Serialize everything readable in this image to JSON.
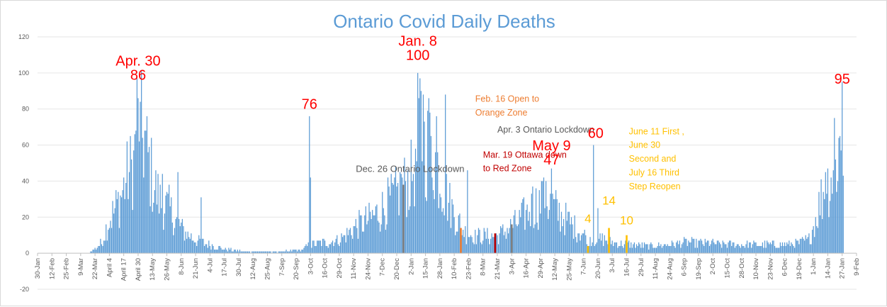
{
  "chart_data": {
    "type": "bar",
    "title": "Ontario Covid Daily Deaths",
    "ylim": [
      -20,
      120
    ],
    "yticks": [
      -20,
      0,
      20,
      40,
      60,
      80,
      100,
      120
    ],
    "x_start": "2020-01-30",
    "x_end": "2022-02-09",
    "xtick_labels": [
      "30-Jan",
      "12-Feb",
      "25-Feb",
      "9-Mar",
      "22-Mar",
      "April 4",
      "April 17",
      "April 30",
      "13-May",
      "26-May",
      "8-Jun",
      "21-Jun",
      "4-Jul",
      "17-Jul",
      "30-Jul",
      "12-Aug",
      "25-Aug",
      "7-Sep",
      "20-Sep",
      "3-Oct",
      "16-Oct",
      "29-Oct",
      "11-Nov",
      "24-Nov",
      "7-Dec",
      "20-Dec",
      "2-Jan",
      "15-Jan",
      "28-Jan",
      "10-Feb",
      "23-Feb",
      "8-Mar",
      "21-Mar",
      "3-Apr",
      "16-Apr",
      "29-Apr",
      "12-May",
      "25-May",
      "7-Jun",
      "20-Jun",
      "3-Jul",
      "16-Jul",
      "29-Jul",
      "11-Aug",
      "24-Aug",
      "6-Sep",
      "19-Sep",
      "2-Oct",
      "15-Oct",
      "28-Oct",
      "10-Nov",
      "23-Nov",
      "6-Dec",
      "19-Dec",
      "1-Jan",
      "14-Jan",
      "27-Jan",
      "9-Feb"
    ],
    "color": "#5b9bd5",
    "keypoints": [
      [
        "2020-03-15",
        0
      ],
      [
        "2020-03-20",
        2
      ],
      [
        "2020-03-28",
        6
      ],
      [
        "2020-04-03",
        18
      ],
      [
        "2020-04-08",
        24
      ],
      [
        "2020-04-14",
        32
      ],
      [
        "2020-04-20",
        44
      ],
      [
        "2020-04-26",
        52
      ],
      [
        "2020-04-30",
        86
      ],
      [
        "2020-05-03",
        70
      ],
      [
        "2020-05-08",
        58
      ],
      [
        "2020-05-14",
        40
      ],
      [
        "2020-05-20",
        30
      ],
      [
        "2020-05-28",
        26
      ],
      [
        "2020-06-04",
        18
      ],
      [
        "2020-06-12",
        12
      ],
      [
        "2020-06-20",
        8
      ],
      [
        "2020-06-28",
        6
      ],
      [
        "2020-07-08",
        4
      ],
      [
        "2020-07-20",
        2
      ],
      [
        "2020-08-05",
        1
      ],
      [
        "2020-09-10",
        1
      ],
      [
        "2020-09-25",
        2
      ],
      [
        "2020-10-03",
        5
      ],
      [
        "2020-10-15",
        6
      ],
      [
        "2020-10-30",
        8
      ],
      [
        "2020-11-10",
        14
      ],
      [
        "2020-11-20",
        18
      ],
      [
        "2020-11-30",
        22
      ],
      [
        "2020-12-10",
        28
      ],
      [
        "2020-12-20",
        34
      ],
      [
        "2020-12-26",
        38
      ],
      [
        "2021-01-02",
        44
      ],
      [
        "2021-01-08",
        60
      ],
      [
        "2021-01-15",
        62
      ],
      [
        "2021-01-22",
        58
      ],
      [
        "2021-01-29",
        44
      ],
      [
        "2021-02-05",
        30
      ],
      [
        "2021-02-12",
        20
      ],
      [
        "2021-02-20",
        12
      ],
      [
        "2021-03-01",
        10
      ],
      [
        "2021-03-10",
        10
      ],
      [
        "2021-03-20",
        10
      ],
      [
        "2021-03-30",
        14
      ],
      [
        "2021-04-08",
        18
      ],
      [
        "2021-04-18",
        24
      ],
      [
        "2021-04-25",
        28
      ],
      [
        "2021-05-02",
        30
      ],
      [
        "2021-05-09",
        28
      ],
      [
        "2021-05-18",
        22
      ],
      [
        "2021-05-28",
        16
      ],
      [
        "2021-06-05",
        12
      ],
      [
        "2021-06-15",
        8
      ],
      [
        "2021-06-25",
        8
      ],
      [
        "2021-07-05",
        6
      ],
      [
        "2021-07-20",
        5
      ],
      [
        "2021-08-05",
        4
      ],
      [
        "2021-08-20",
        5
      ],
      [
        "2021-09-05",
        6
      ],
      [
        "2021-09-25",
        6
      ],
      [
        "2021-10-15",
        5
      ],
      [
        "2021-11-01",
        5
      ],
      [
        "2021-11-20",
        5
      ],
      [
        "2021-12-05",
        5
      ],
      [
        "2021-12-20",
        6
      ],
      [
        "2021-12-28",
        8
      ],
      [
        "2022-01-03",
        20
      ],
      [
        "2022-01-08",
        32
      ],
      [
        "2022-01-14",
        40
      ],
      [
        "2022-01-20",
        50
      ],
      [
        "2022-01-25",
        62
      ],
      [
        "2022-01-28",
        60
      ]
    ],
    "spikes": [
      [
        "2020-04-28",
        68
      ],
      [
        "2020-04-30",
        86
      ],
      [
        "2020-05-01",
        62
      ],
      [
        "2020-05-02",
        84
      ],
      [
        "2020-05-06",
        68
      ],
      [
        "2020-05-22",
        44
      ],
      [
        "2020-06-05",
        45
      ],
      [
        "2020-06-26",
        31
      ],
      [
        "2020-10-02",
        76
      ],
      [
        "2020-10-03",
        42
      ],
      [
        "2020-12-24",
        44
      ],
      [
        "2020-12-28",
        40
      ],
      [
        "2021-01-06",
        58
      ],
      [
        "2021-01-08",
        100
      ],
      [
        "2021-01-10",
        97
      ],
      [
        "2021-01-11",
        90
      ],
      [
        "2021-01-13",
        88
      ],
      [
        "2021-01-18",
        86
      ],
      [
        "2021-01-25",
        76
      ],
      [
        "2021-02-02",
        88
      ],
      [
        "2021-02-22",
        46
      ],
      [
        "2021-04-22",
        37
      ],
      [
        "2021-05-01",
        40
      ],
      [
        "2021-05-04",
        40
      ],
      [
        "2021-05-09",
        47
      ],
      [
        "2021-06-16",
        60
      ],
      [
        "2021-06-20",
        25
      ],
      [
        "2022-01-12",
        45
      ],
      [
        "2022-01-20",
        75
      ],
      [
        "2022-01-24",
        64
      ],
      [
        "2022-01-27",
        95
      ]
    ],
    "highlights": [
      {
        "date": "2020-12-26",
        "value": 38,
        "color": "#808080"
      },
      {
        "date": "2021-02-16",
        "value": 14,
        "color": "#ed7d31"
      },
      {
        "date": "2021-03-19",
        "value": 11,
        "color": "#c00000"
      },
      {
        "date": "2021-04-03",
        "value": 16,
        "color": "#7f7f7f"
      },
      {
        "date": "2021-06-11",
        "value": 4,
        "color": "#ffc000"
      },
      {
        "date": "2021-06-30",
        "value": 14,
        "color": "#ffc000"
      },
      {
        "date": "2021-07-16",
        "value": 10,
        "color": "#ffc000"
      }
    ],
    "annotations": [
      {
        "lines": [
          "Apr. 30",
          "86"
        ],
        "cls": "ann-red",
        "size": 20,
        "date": "2020-04-30",
        "value": 104
      },
      {
        "lines": [
          "76"
        ],
        "cls": "ann-red",
        "size": 20,
        "date": "2020-10-02",
        "value": 80
      },
      {
        "lines": [
          "Dec. 26 Ontario Lockdown"
        ],
        "cls": "ann-gray",
        "size": 13,
        "date": "2020-11-13",
        "value": 45
      },
      {
        "lines": [
          "Jan. 8",
          "100"
        ],
        "cls": "ann-red",
        "size": 20,
        "date": "2021-01-08",
        "value": 115
      },
      {
        "lines": [
          "Feb. 16 Open to",
          "Orange Zone"
        ],
        "cls": "ann-orange",
        "size": 12.5,
        "date": "2021-03-01",
        "value": 84
      },
      {
        "lines": [
          "Apr. 3 Ontario Lockdown"
        ],
        "cls": "ann-gray",
        "size": 12.5,
        "date": "2021-03-21",
        "value": 67
      },
      {
        "lines": [
          "Mar. 19 Ottawa down",
          "to Red Zone"
        ],
        "cls": "ann-darkred",
        "size": 12.5,
        "date": "2021-03-08",
        "value": 53
      },
      {
        "lines": [
          "May 9",
          "47"
        ],
        "cls": "ann-red",
        "size": 20,
        "date": "2021-05-09",
        "value": 57
      },
      {
        "lines": [
          "60"
        ],
        "cls": "ann-red",
        "size": 20,
        "date": "2021-06-18",
        "value": 64
      },
      {
        "lines": [
          "June 11 First ,",
          "June 30",
          "Second and",
          "July 16 Third",
          "Step Reopen"
        ],
        "cls": "ann-gold",
        "size": 12.5,
        "date": "2021-07-18",
        "value": 66
      },
      {
        "lines": [
          "14"
        ],
        "cls": "ann-gold",
        "size": 17,
        "date": "2021-06-30",
        "value": 27
      },
      {
        "lines": [
          "4"
        ],
        "cls": "ann-gold",
        "size": 17,
        "date": "2021-06-11",
        "value": 17
      },
      {
        "lines": [
          "10"
        ],
        "cls": "ann-gold",
        "size": 17,
        "date": "2021-07-16",
        "value": 16
      },
      {
        "lines": [
          "95"
        ],
        "cls": "ann-red",
        "size": 20,
        "date": "2022-01-27",
        "value": 94
      }
    ]
  }
}
